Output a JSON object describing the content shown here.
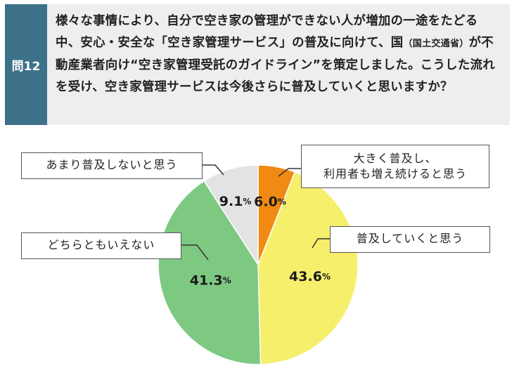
{
  "question": {
    "label": "問12",
    "text_part1": "様々な事情により、自分で空き家の管理ができない人が増加の一途をたどる中、安心・安全な「空き家管理サービス」の普及に向けて、国",
    "text_small": "（国土交通省）",
    "text_part2": "が不動産業者向け“空き家管理受託のガイドライン”を策定しました。こうした流れを受け、空き家管理サービスは今後さらに普及していくと思いますか？"
  },
  "chart_data": {
    "type": "pie",
    "value_suffix": "%",
    "slices": [
      {
        "label": "大きく普及し、\n利用者も増え続けると思う",
        "value": 6.0,
        "display": "6.0",
        "color": "#f08a12"
      },
      {
        "label": "普及していくと思う",
        "value": 43.6,
        "display": "43.6",
        "color": "#f5ef6c"
      },
      {
        "label": "どちらともいえない",
        "value": 41.3,
        "display": "41.3",
        "color": "#7ec982"
      },
      {
        "label": "あまり普及しないと思う",
        "value": 9.1,
        "display": "9.1",
        "color": "#e3e3e3"
      }
    ],
    "start_angle_deg": 0,
    "direction": "clockwise"
  }
}
